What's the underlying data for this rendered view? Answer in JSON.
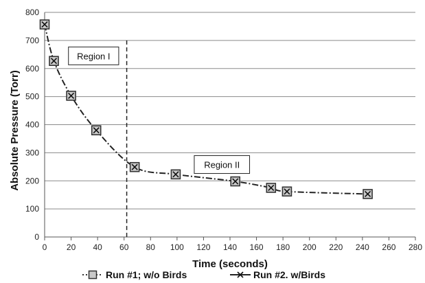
{
  "chart_data": {
    "type": "line",
    "xlabel": "Time (seconds)",
    "ylabel": "Absolute Pressure (Torr)",
    "xlim": [
      0,
      280
    ],
    "ylim": [
      0,
      800
    ],
    "x_ticks": [
      "0",
      "20",
      "40",
      "60",
      "80",
      "100",
      "120",
      "140",
      "160",
      "180",
      "200",
      "220",
      "240",
      "260",
      "280"
    ],
    "y_ticks": [
      "0",
      "100",
      "200",
      "300",
      "400",
      "500",
      "600",
      "700",
      "800"
    ],
    "grid": "horizontal",
    "legend_position": "bottom",
    "series": [
      {
        "name": "Run #1; w/o Birds",
        "marker": "square",
        "color": "#333333",
        "x": [
          0,
          7,
          20,
          39,
          68,
          99,
          144,
          171,
          183,
          244
        ],
        "y": [
          757,
          627,
          503,
          380,
          249,
          223,
          198,
          175,
          162,
          153
        ]
      },
      {
        "name": "Run #2. w/Birds",
        "marker": "x",
        "color": "#333333",
        "x": [
          0,
          7,
          20,
          39,
          68,
          99,
          144,
          171,
          183,
          244
        ],
        "y": [
          757,
          627,
          503,
          380,
          249,
          223,
          198,
          175,
          162,
          153
        ]
      }
    ],
    "divider_x": 62,
    "annotations": [
      {
        "text": "Region I",
        "x": 18,
        "y": 645
      },
      {
        "text": "Region II",
        "x": 113,
        "y": 258
      }
    ]
  }
}
